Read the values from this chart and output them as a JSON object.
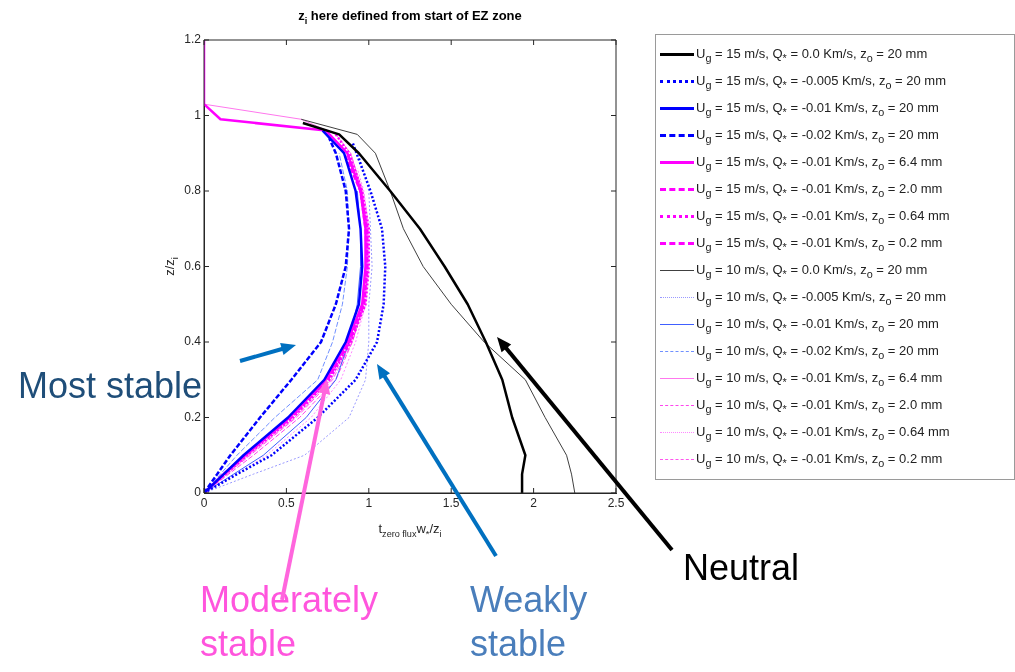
{
  "chart_data": {
    "type": "line",
    "title": "z$_{i}$ here defined from start of EZ zone",
    "xlabel": "t$_{zero flux}$w$_{*}$/z$_{i}$",
    "ylabel": "z/z$_{i}$",
    "xlim": [
      0,
      2.5
    ],
    "xticks": [
      0,
      0.5,
      1,
      1.5,
      2,
      2.5
    ],
    "ylim": [
      0,
      1.2
    ],
    "yticks": [
      0,
      0.2,
      0.4,
      0.6,
      0.8,
      1,
      1.2
    ],
    "grid": false,
    "legend": "right",
    "series": [
      {
        "name": "U$_{g}$ = 15 m/s, Q$_{*}$ = 0.0 Km/s, z$_{o}$ = 20 mm",
        "color": "#000000",
        "line_style": "solid",
        "x": [
          1.93,
          1.93,
          1.95,
          1.87,
          1.81,
          1.71,
          1.6,
          1.46,
          1.31,
          1.13,
          0.94,
          0.82,
          0.6
        ],
        "values": [
          0,
          0.05,
          0.1,
          0.2,
          0.3,
          0.4,
          0.5,
          0.6,
          0.7,
          0.8,
          0.9,
          0.95,
          0.98
        ]
      },
      {
        "name": "U$_{g}$ = 15 m/s, Q$_{*}$ = -0.005 Km/s, z$_{o}$ = 20 mm",
        "color": "#0000ff",
        "line_style": "dotted",
        "x": [
          0,
          0.2,
          0.41,
          0.69,
          0.92,
          1.05,
          1.09,
          1.1,
          1.08,
          1.01,
          0.9
        ],
        "values": [
          0,
          0.05,
          0.1,
          0.2,
          0.3,
          0.4,
          0.5,
          0.6,
          0.7,
          0.8,
          0.93
        ]
      },
      {
        "name": "U$_{g}$ = 15 m/s, Q$_{*}$ = -0.01 Km/s, z$_{o}$ = 20 mm",
        "color": "#0000ff",
        "line_style": "solid",
        "x": [
          0,
          0.12,
          0.24,
          0.51,
          0.73,
          0.86,
          0.94,
          0.96,
          0.95,
          0.92,
          0.85,
          0.72
        ],
        "values": [
          0,
          0.05,
          0.1,
          0.2,
          0.3,
          0.4,
          0.5,
          0.6,
          0.7,
          0.8,
          0.9,
          0.96
        ]
      },
      {
        "name": "U$_{g}$ = 15 m/s, Q$_{*}$ = -0.02 Km/s, z$_{o}$ = 20 mm",
        "color": "#0000ff",
        "line_style": "dashed",
        "x": [
          0,
          0.08,
          0.16,
          0.34,
          0.53,
          0.71,
          0.8,
          0.86,
          0.88,
          0.86,
          0.8,
          0.76
        ],
        "values": [
          0,
          0.05,
          0.1,
          0.2,
          0.3,
          0.4,
          0.5,
          0.6,
          0.7,
          0.8,
          0.9,
          0.94
        ]
      },
      {
        "name": "U$_{g}$ = 15 m/s, Q$_{*}$ = -0.01 Km/s, z$_{o}$ = 6.4 mm",
        "color": "#ff00ff",
        "line_style": "solid",
        "x": [
          0,
          0.12,
          0.25,
          0.52,
          0.74,
          0.87,
          0.96,
          0.98,
          0.98,
          0.95,
          0.87,
          0.74,
          0.1,
          0,
          0
        ],
        "values": [
          0,
          0.05,
          0.1,
          0.2,
          0.3,
          0.4,
          0.5,
          0.6,
          0.7,
          0.8,
          0.9,
          0.96,
          0.99,
          1.03,
          1.2
        ]
      },
      {
        "name": "U$_{g}$ = 15 m/s, Q$_{*}$ = -0.01 Km/s, z$_{o}$ = 2.0 mm",
        "color": "#ff00ff",
        "line_style": "dashed",
        "x": [
          0,
          0.12,
          0.25,
          0.53,
          0.75,
          0.88,
          0.97,
          0.99,
          0.99,
          0.95,
          0.87
        ],
        "values": [
          0,
          0.05,
          0.1,
          0.2,
          0.3,
          0.4,
          0.5,
          0.6,
          0.7,
          0.8,
          0.9
        ]
      },
      {
        "name": "U$_{g}$ = 15 m/s, Q$_{*}$ = -0.01 Km/s, z$_{o}$ = 0.64 mm",
        "color": "#ff00ff",
        "line_style": "dotted",
        "x": [
          0,
          0.13,
          0.26,
          0.54,
          0.76,
          0.89,
          0.98,
          1,
          1,
          0.96,
          0.88,
          0.8
        ],
        "values": [
          0,
          0.05,
          0.1,
          0.2,
          0.3,
          0.4,
          0.5,
          0.6,
          0.7,
          0.8,
          0.9,
          0.95
        ]
      },
      {
        "name": "U$_{g}$ = 15 m/s, Q$_{*}$ = -0.01 Km/s, z$_{o}$ = 0.2 mm",
        "color": "#ff00ff",
        "line_style": "dashed",
        "x": [
          0,
          0.12,
          0.25,
          0.52,
          0.75,
          0.88,
          0.97,
          0.99,
          0.98,
          0.95,
          0.83
        ],
        "values": [
          0,
          0.05,
          0.1,
          0.2,
          0.3,
          0.4,
          0.5,
          0.6,
          0.7,
          0.8,
          0.92
        ]
      },
      {
        "name": "U$_{g}$ = 10 m/s, Q$_{*}$ = 0.0 Km/s, z$_{o}$ = 20 mm",
        "color": "#404040",
        "line_style": "solid",
        "x": [
          2.25,
          2.23,
          2.2,
          2.07,
          1.95,
          1.7,
          1.5,
          1.33,
          1.21,
          1.13,
          1.04,
          0.93,
          0.59
        ],
        "values": [
          0,
          0.05,
          0.1,
          0.2,
          0.3,
          0.4,
          0.5,
          0.6,
          0.7,
          0.8,
          0.9,
          0.95,
          0.99
        ]
      },
      {
        "name": "U$_{g}$ = 10 m/s, Q$_{*}$ = -0.005 Km/s, z$_{o}$ = 20 mm",
        "color": "#9999ff",
        "line_style": "dotted",
        "x": [
          0,
          0.3,
          0.61,
          0.88,
          0.98,
          1,
          1,
          1.02,
          1.01,
          1,
          0.94
        ],
        "values": [
          0,
          0.05,
          0.1,
          0.2,
          0.3,
          0.4,
          0.5,
          0.6,
          0.7,
          0.8,
          0.9
        ]
      },
      {
        "name": "U$_{g}$ = 10 m/s, Q$_{*}$ = -0.01 Km/s, z$_{o}$ = 20 mm",
        "color": "#4060ff",
        "line_style": "solid",
        "x": [
          0,
          0.18,
          0.36,
          0.62,
          0.8,
          0.88,
          0.93,
          0.95,
          0.95,
          0.93
        ],
        "values": [
          0,
          0.05,
          0.1,
          0.2,
          0.3,
          0.4,
          0.5,
          0.6,
          0.7,
          0.8
        ]
      },
      {
        "name": "U$_{g}$ = 10 m/s, Q$_{*}$ = -0.02 Km/s, z$_{o}$ = 20 mm",
        "color": "#7090ff",
        "line_style": "dashed",
        "x": [
          0,
          0.1,
          0.2,
          0.43,
          0.69,
          0.78,
          0.84,
          0.87,
          0.88,
          0.87,
          0.82
        ],
        "values": [
          0,
          0.05,
          0.1,
          0.2,
          0.3,
          0.4,
          0.5,
          0.6,
          0.7,
          0.8,
          0.9
        ]
      },
      {
        "name": "U$_{g}$ = 10 m/s, Q$_{*}$ = -0.01 Km/s, z$_{o}$ = 6.4 mm",
        "color": "#ff77ee",
        "line_style": "solid",
        "x": [
          0,
          0.14,
          0.27,
          0.55,
          0.77,
          0.89,
          0.97,
          0.99,
          0.99,
          0.96,
          0.89,
          0.8,
          0.59,
          0
        ],
        "values": [
          0,
          0.05,
          0.1,
          0.2,
          0.3,
          0.4,
          0.5,
          0.6,
          0.7,
          0.8,
          0.9,
          0.95,
          0.99,
          1.03
        ]
      },
      {
        "name": "U$_{g}$ = 10 m/s, Q$_{*}$ = -0.01 Km/s, z$_{o}$ = 2.0 mm",
        "color": "#ff44ee",
        "line_style": "dashed",
        "x": [
          0,
          0.15,
          0.3,
          0.58,
          0.8,
          0.9,
          0.97,
          0.99,
          0.99,
          0.96,
          0.89
        ],
        "values": [
          0,
          0.05,
          0.1,
          0.2,
          0.3,
          0.4,
          0.5,
          0.6,
          0.7,
          0.8,
          0.9
        ]
      },
      {
        "name": "U$_{g}$ = 10 m/s, Q$_{*}$ = -0.01 Km/s, z$_{o}$ = 0.64 mm",
        "color": "#ff88ff",
        "line_style": "dotted",
        "x": [
          0,
          0.2,
          0.38,
          0.65,
          0.83,
          0.92,
          0.98,
          1,
          1,
          0.97,
          0.93
        ],
        "values": [
          0,
          0.05,
          0.1,
          0.2,
          0.3,
          0.4,
          0.5,
          0.6,
          0.7,
          0.8,
          0.86
        ]
      },
      {
        "name": "U$_{g}$ = 10 m/s, Q$_{*}$ = -0.01 Km/s, z$_{o}$ = 0.2 mm",
        "color": "#ff55ee",
        "line_style": "dashed",
        "x": [
          0,
          0.14,
          0.28,
          0.56,
          0.78,
          0.9,
          0.97,
          0.99,
          0.99,
          0.96,
          0.91
        ],
        "values": [
          0,
          0.05,
          0.1,
          0.2,
          0.3,
          0.4,
          0.5,
          0.6,
          0.7,
          0.8,
          0.87
        ]
      }
    ],
    "annotations": [
      "Most stable",
      "Moderately stable",
      "Weakly stable",
      "Neutral"
    ]
  }
}
